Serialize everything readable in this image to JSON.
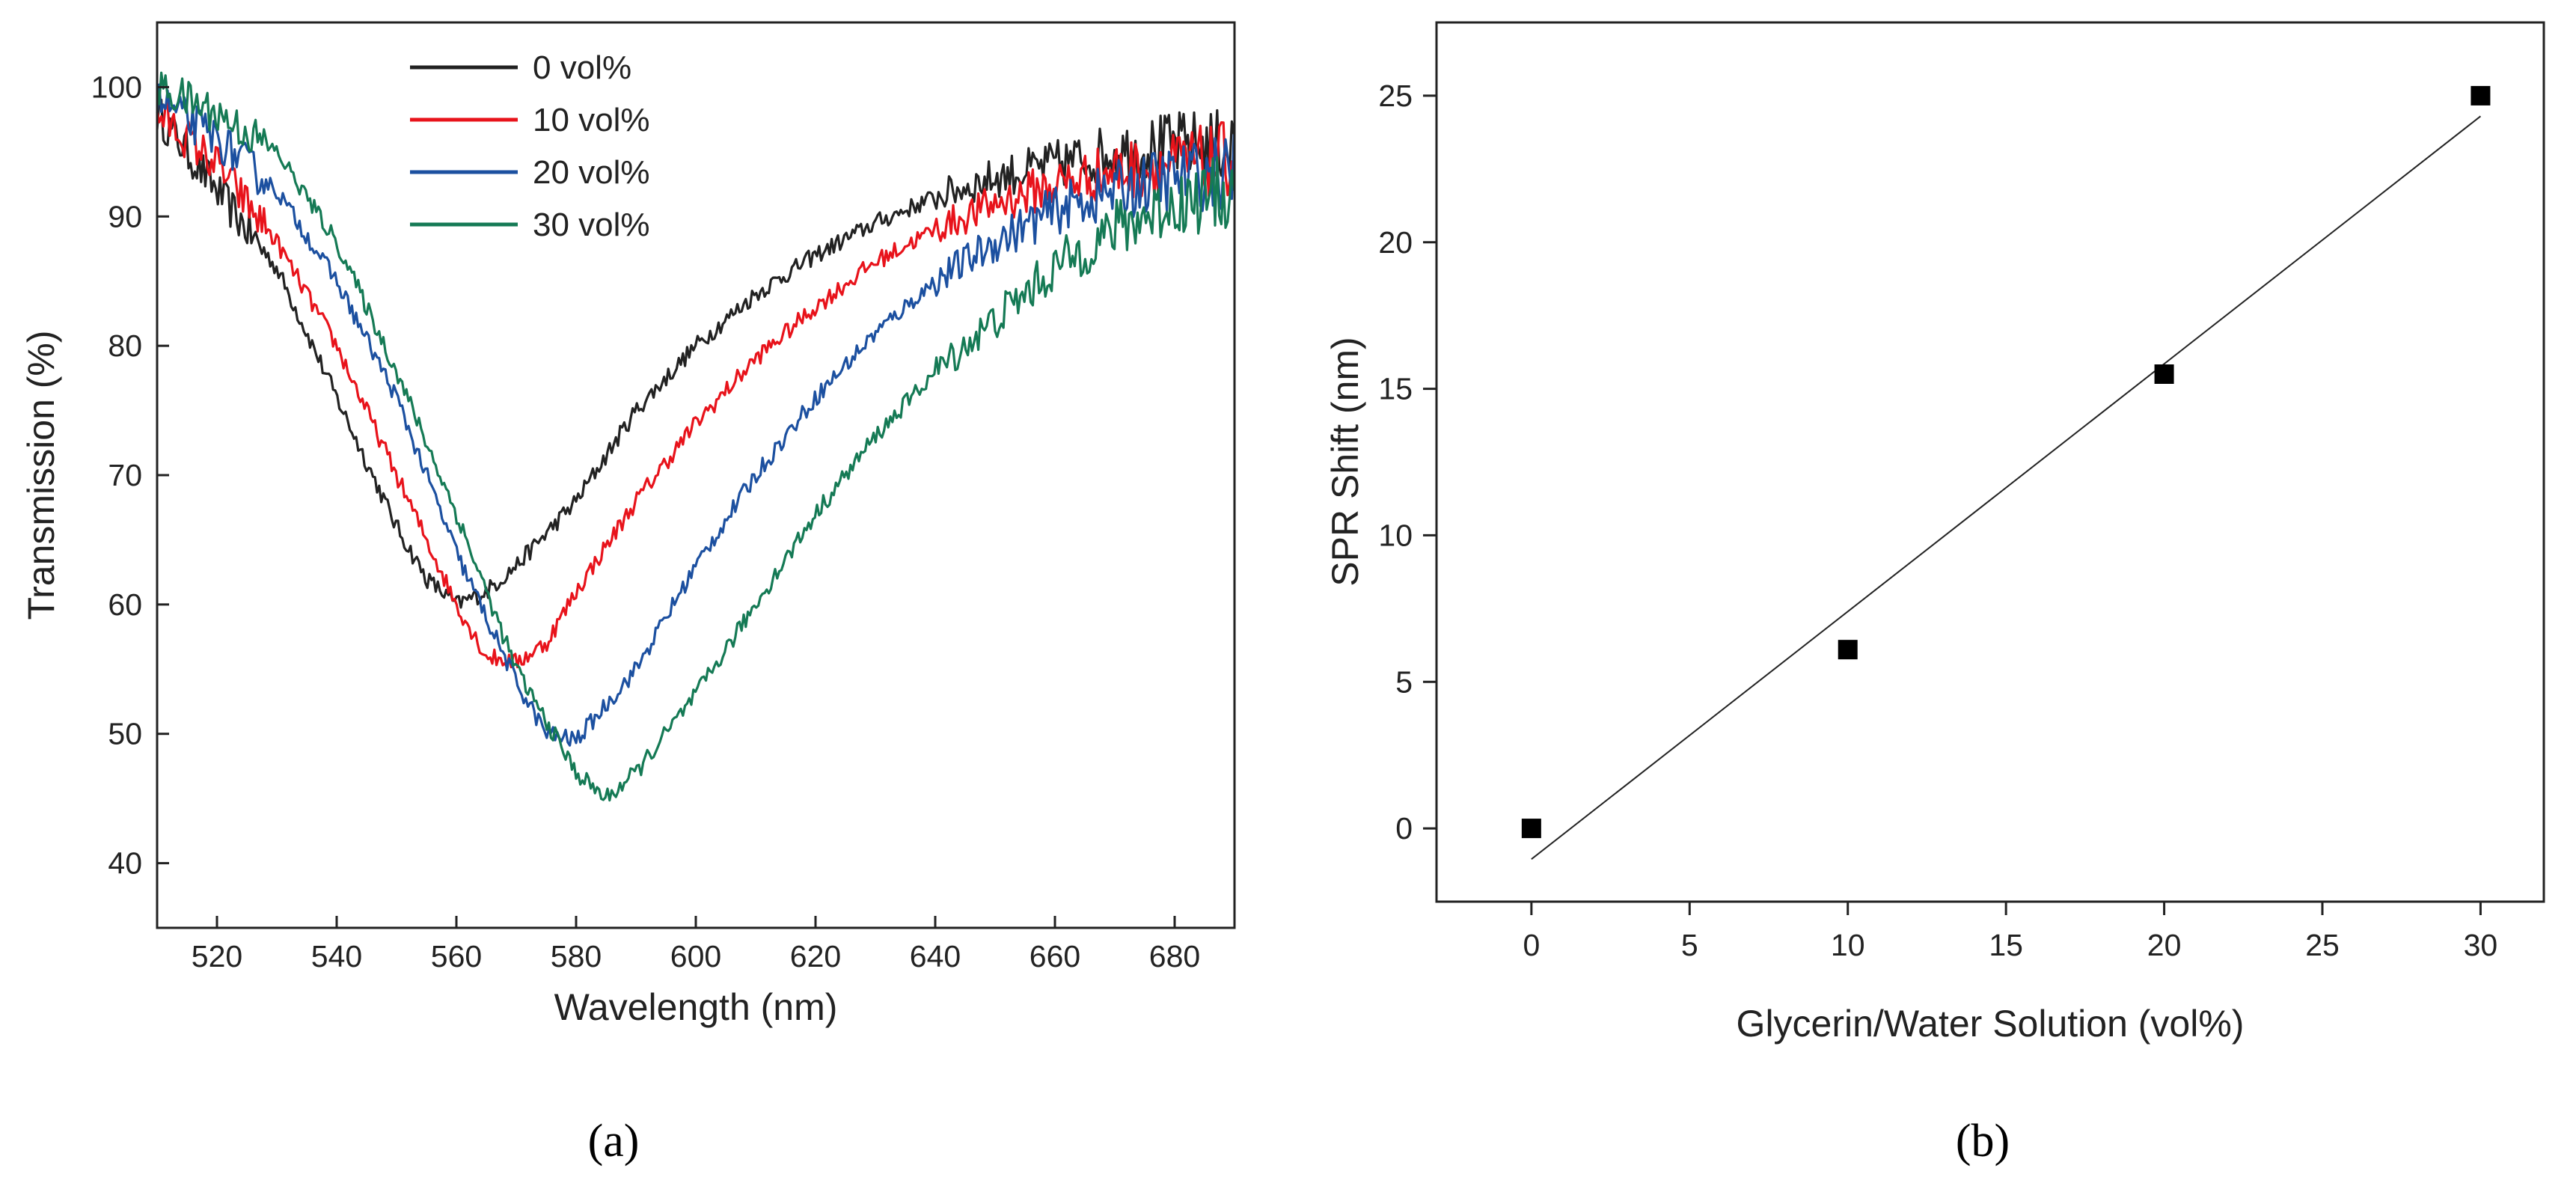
{
  "chart_data": [
    {
      "type": "line",
      "panel_label": "(a)",
      "xlabel": "Wavelength (nm)",
      "ylabel": "Transmission (%)",
      "xlim": [
        510,
        690
      ],
      "ylim": [
        35,
        105
      ],
      "xticks": [
        520,
        540,
        560,
        580,
        600,
        620,
        640,
        660,
        680
      ],
      "yticks": [
        40,
        50,
        60,
        70,
        80,
        90,
        100
      ],
      "legend_position": "top-center",
      "series": [
        {
          "name": "0 vol%",
          "color": "#222222",
          "x": [
            510,
            520,
            530,
            540,
            550,
            555,
            560,
            565,
            570,
            580,
            590,
            600,
            610,
            620,
            630,
            640,
            650,
            660,
            670,
            680,
            690
          ],
          "y": [
            98,
            92,
            86,
            76,
            66,
            62,
            60,
            61,
            63,
            68,
            75,
            80,
            84,
            87,
            89.5,
            91.5,
            93,
            94,
            95,
            95.5,
            95.5
          ]
        },
        {
          "name": "10 vol%",
          "color": "#e8131b",
          "x": [
            510,
            520,
            530,
            540,
            550,
            560,
            565,
            570,
            575,
            580,
            590,
            600,
            610,
            620,
            630,
            640,
            650,
            660,
            670,
            680,
            690
          ],
          "y": [
            98,
            94,
            88,
            80,
            70,
            60,
            56,
            55.5,
            57,
            61,
            68,
            74,
            79,
            83,
            86.5,
            89,
            91,
            92.5,
            93.5,
            94,
            94.5
          ]
        },
        {
          "name": "20 vol%",
          "color": "#1c50a0",
          "x": [
            510,
            520,
            530,
            540,
            550,
            560,
            570,
            575,
            580,
            590,
            600,
            610,
            620,
            630,
            640,
            650,
            660,
            670,
            680,
            690
          ],
          "y": [
            99,
            96,
            92,
            85,
            76,
            64,
            54,
            50,
            49.5,
            55,
            63,
            70,
            76,
            81,
            85,
            88,
            90.5,
            92,
            93,
            93.5
          ]
        },
        {
          "name": "30 vol%",
          "color": "#157a55",
          "x": [
            510,
            520,
            530,
            540,
            550,
            560,
            570,
            580,
            585,
            590,
            600,
            610,
            620,
            630,
            640,
            650,
            660,
            670,
            680,
            690
          ],
          "y": [
            100,
            98,
            95,
            88,
            78,
            67,
            55,
            47,
            45,
            47,
            53,
            60,
            67,
            73,
            78,
            82,
            86,
            89,
            91,
            92
          ]
        }
      ]
    },
    {
      "type": "scatter",
      "panel_label": "(b)",
      "xlabel": "Glycerin/Water Solution (vol%)",
      "ylabel": "SPR Shift (nm)",
      "xlim": [
        -3,
        32
      ],
      "ylim": [
        -2.5,
        27.5
      ],
      "xticks": [
        0,
        5,
        10,
        15,
        20,
        25,
        30
      ],
      "yticks": [
        0,
        5,
        10,
        15,
        20,
        25
      ],
      "points": {
        "x": [
          0,
          10,
          20,
          30
        ],
        "y": [
          0,
          6.1,
          15.5,
          25
        ]
      },
      "fit_line": {
        "x": [
          0,
          30
        ],
        "y": [
          -1.05,
          24.3
        ]
      }
    }
  ]
}
